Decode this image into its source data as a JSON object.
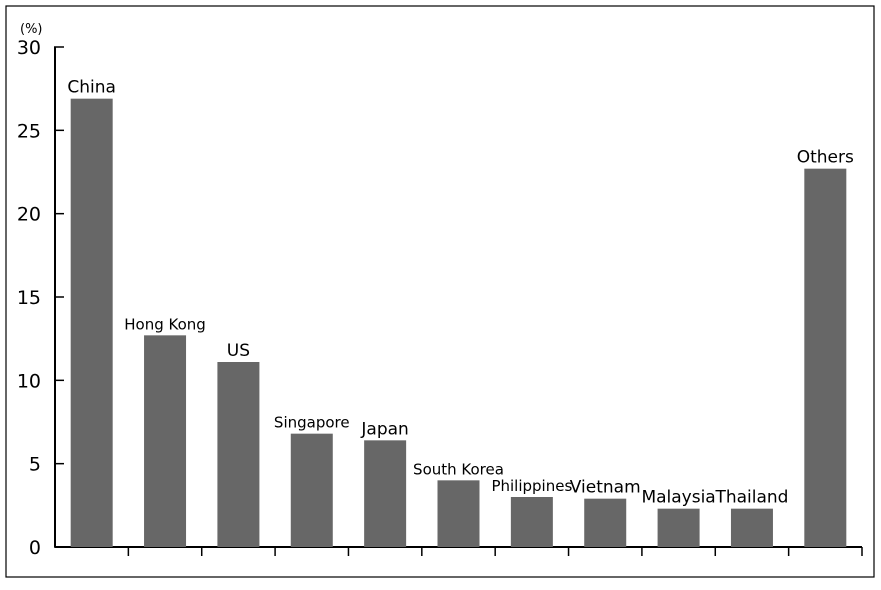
{
  "chart_data": {
    "type": "bar",
    "categories": [
      "China",
      "Hong Kong",
      "US",
      "Singapore",
      "Japan",
      "South Korea",
      "Philippines",
      "Vietnam",
      "Malaysia",
      "Thailand",
      "Others"
    ],
    "values": [
      26.9,
      12.7,
      11.1,
      6.8,
      6.4,
      4.0,
      3.0,
      2.9,
      2.3,
      2.3,
      22.7
    ],
    "unit_label": "(%)",
    "ylim": [
      0,
      30
    ],
    "yticks": [
      "0",
      "5",
      "10",
      "15",
      "20",
      "25",
      "30"
    ],
    "bar_color": "#676767",
    "grid": false,
    "title": "",
    "xlabel": "",
    "ylabel": ""
  }
}
